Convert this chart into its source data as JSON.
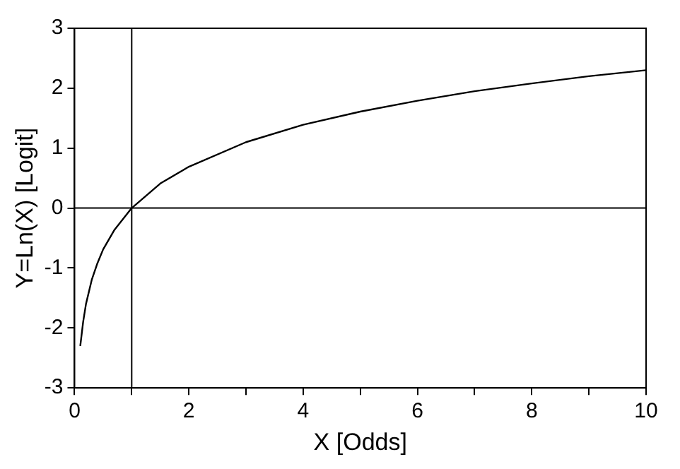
{
  "chart_data": {
    "type": "line",
    "xlabel": "X [Odds]",
    "ylabel": "Y=Ln(X) [Logit]",
    "x": [
      0.1,
      0.15,
      0.2,
      0.3,
      0.4,
      0.5,
      0.7,
      1,
      1.5,
      2,
      3,
      4,
      5,
      6,
      7,
      8,
      9,
      10
    ],
    "series": [
      {
        "color": "#000000",
        "values": [
          -2.3,
          -1.9,
          -1.6,
          -1.2,
          -0.92,
          -0.69,
          -0.36,
          0,
          0.41,
          0.69,
          1.1,
          1.39,
          1.61,
          1.79,
          1.95,
          2.08,
          2.2,
          2.3
        ]
      }
    ],
    "xlim": [
      0,
      10
    ],
    "xticks": [
      0,
      {
        "value": 1,
        "label": null
      },
      2,
      {
        "value": 3,
        "label": null
      },
      4,
      {
        "value": 5,
        "label": null
      },
      6,
      {
        "value": 7,
        "label": null
      },
      8,
      {
        "value": 9,
        "label": null
      },
      10
    ],
    "ylim": [
      -3,
      3
    ],
    "yticks": [
      -3,
      -2,
      -1,
      0,
      1,
      2,
      3
    ],
    "ref_lines": [
      {
        "axis": "x",
        "value": 1,
        "color": "#000000"
      },
      {
        "axis": "y",
        "value": 0,
        "color": "#000000"
      }
    ],
    "grid": false,
    "legend": false,
    "marker": "none",
    "line_style": "solid"
  }
}
